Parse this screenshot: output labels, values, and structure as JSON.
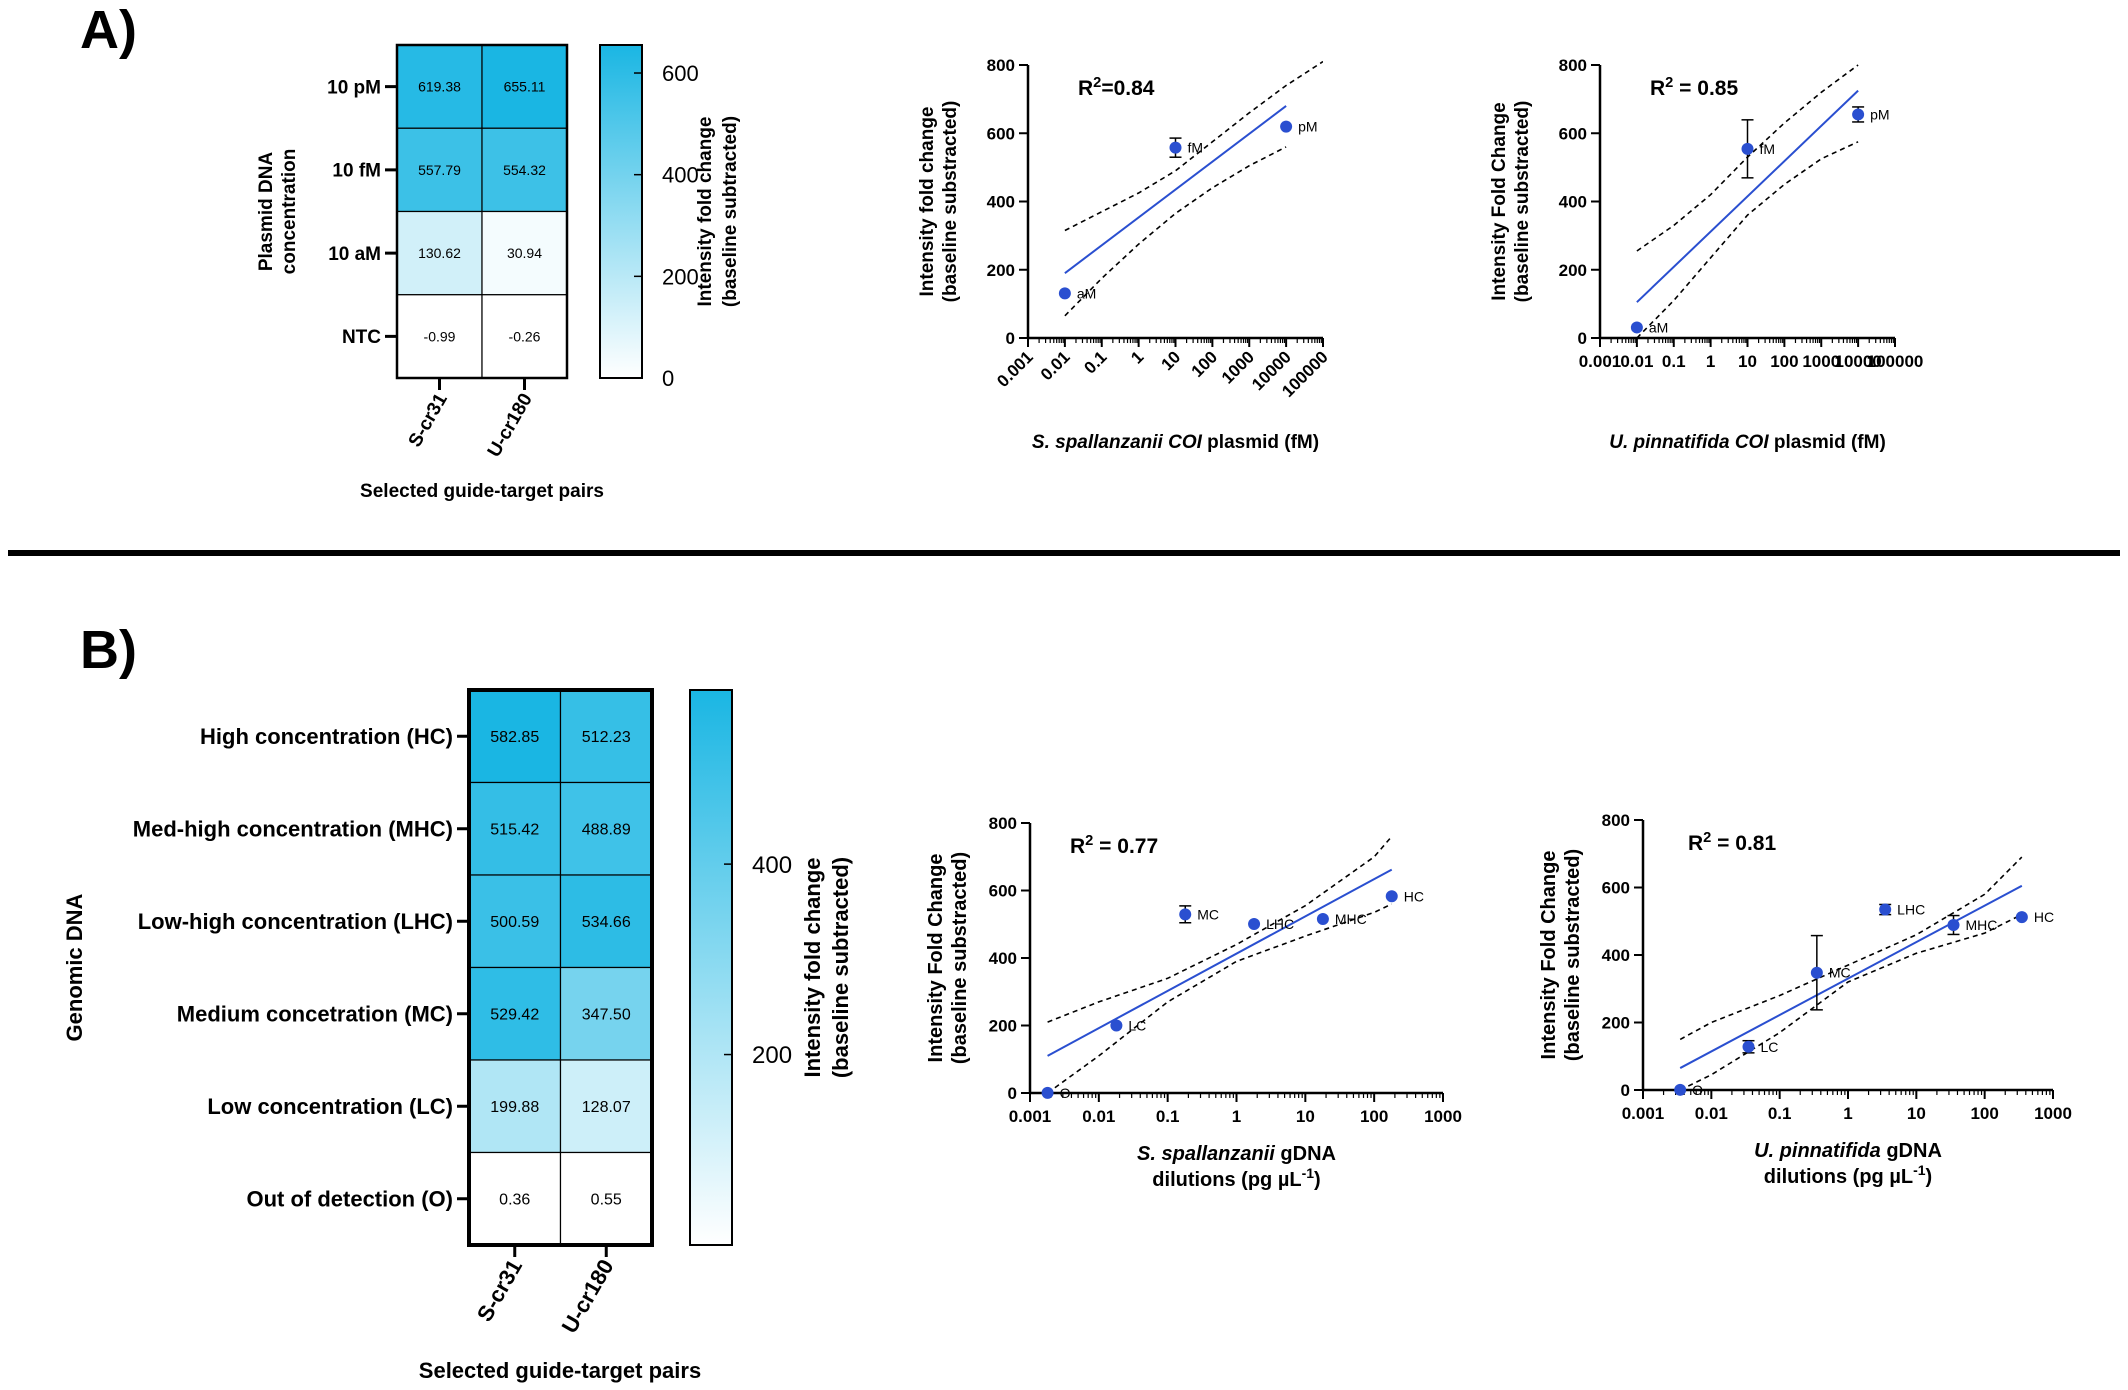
{
  "panel_labels": {
    "a": "A)",
    "b": "B)"
  },
  "colors": {
    "low": "#ffffff",
    "high": "#1ab6e3",
    "point": "#2a4fd0",
    "fit": "#2a4fd0",
    "text": "#000000"
  },
  "chart_data": [
    {
      "id": "heatA",
      "type": "heatmap",
      "ylabel": [
        "Plasmid DNA",
        "concentration"
      ],
      "xlabel": "Selected guide-target pairs",
      "rows": [
        "10 pM",
        "10 fM",
        "10 aM",
        "NTC"
      ],
      "cols": [
        "S-cr31",
        "U-cr180"
      ],
      "cells": [
        [
          "619.38",
          "655.11"
        ],
        [
          "557.79",
          "554.32"
        ],
        [
          "130.62",
          "30.94"
        ],
        [
          "-0.99",
          "-0.26"
        ]
      ],
      "values": [
        [
          619.38,
          655.11
        ],
        [
          557.79,
          554.32
        ],
        [
          130.62,
          30.94
        ],
        [
          -0.99,
          -0.26
        ]
      ],
      "colorbar": {
        "min": 0,
        "max": 655.11,
        "ticks": [
          "600",
          "400",
          "200",
          "0"
        ],
        "tick_values": [
          600,
          400,
          200,
          0
        ],
        "label": [
          "Intensity fold change",
          "(baseline subtracted)"
        ]
      }
    },
    {
      "id": "scatA1",
      "type": "scatter",
      "r2": {
        "prefix": "R",
        "sup": "2",
        "value": "=0.84"
      },
      "ylabel": [
        "Intensity fold change",
        "(baseline substracted)"
      ],
      "xlabel": [
        {
          "italic": "S. spallanzanii COI",
          "normal": " plasmid (fM)"
        }
      ],
      "xscale": "log",
      "xlim": [
        0.001,
        100000
      ],
      "ylim": [
        0,
        800
      ],
      "xticks": [
        "0.001",
        "0.01",
        "0.1",
        "1",
        "10",
        "100",
        "1000",
        "10000",
        "100000"
      ],
      "xtick_values": [
        0.001,
        0.01,
        0.1,
        1,
        10,
        100,
        1000,
        10000,
        100000
      ],
      "yticks": [
        "0",
        "200",
        "400",
        "600",
        "800"
      ],
      "ytick_values": [
        0,
        200,
        400,
        600,
        800
      ],
      "points": [
        {
          "x": 0.01,
          "y": 130.62,
          "label": "aM",
          "err": 0
        },
        {
          "x": 10,
          "y": 557.79,
          "label": "fM",
          "err": 28
        },
        {
          "x": 10000,
          "y": 619.38,
          "label": "pM",
          "err": 0
        }
      ],
      "fit": {
        "x": [
          0.01,
          10000
        ],
        "y": [
          190,
          680
        ]
      },
      "ci_upper": {
        "x": [
          0.01,
          0.1,
          1,
          10,
          100,
          1000,
          10000,
          100000
        ],
        "y": [
          315,
          370,
          425,
          490,
          575,
          660,
          740,
          810
        ]
      },
      "ci_lower": {
        "x": [
          0.01,
          0.1,
          1,
          10,
          100,
          1000,
          10000
        ],
        "y": [
          65,
          175,
          275,
          365,
          440,
          505,
          560
        ]
      }
    },
    {
      "id": "scatA2",
      "type": "scatter",
      "r2": {
        "prefix": "R",
        "sup": "2",
        "value": " = 0.85"
      },
      "ylabel": [
        "Intensity Fold Change",
        "(baseline substracted)"
      ],
      "xlabel": [
        {
          "italic": "U. pinnatifida COI",
          "normal": " plasmid (fM)"
        }
      ],
      "xscale": "log",
      "xlim": [
        0.001,
        100000
      ],
      "ylim": [
        0,
        800
      ],
      "xticks": [
        "0.001",
        "0.01",
        "0.1",
        "1",
        "10",
        "100",
        "1000",
        "10000",
        "100000"
      ],
      "xtick_values": [
        0.001,
        0.01,
        0.1,
        1,
        10,
        100,
        1000,
        10000,
        100000
      ],
      "yticks": [
        "0",
        "200",
        "400",
        "600",
        "800"
      ],
      "ytick_values": [
        0,
        200,
        400,
        600,
        800
      ],
      "points": [
        {
          "x": 0.01,
          "y": 30.94,
          "label": "aM",
          "err": 0
        },
        {
          "x": 10,
          "y": 554.32,
          "label": "fM",
          "err": 85
        },
        {
          "x": 10000,
          "y": 655.11,
          "label": "pM",
          "err": 22
        }
      ],
      "fit": {
        "x": [
          0.01,
          10000
        ],
        "y": [
          105,
          725
        ]
      },
      "ci_upper": {
        "x": [
          0.01,
          0.1,
          1,
          10,
          100,
          1000,
          10000
        ],
        "y": [
          255,
          330,
          420,
          530,
          630,
          720,
          800
        ]
      },
      "ci_lower": {
        "x": [
          0.01,
          0.1,
          1,
          10,
          100,
          1000,
          10000
        ],
        "y": [
          0,
          110,
          235,
          360,
          450,
          525,
          575
        ]
      }
    },
    {
      "id": "heatB",
      "type": "heatmap",
      "ylabel": [
        "Genomic DNA"
      ],
      "xlabel": "Selected guide-target pairs",
      "rows": [
        "High concentration (HC)",
        "Med-high concentration (MHC)",
        "Low-high concentration (LHC)",
        "Medium concetration (MC)",
        "Low concentration (LC)",
        "Out of detection (O)"
      ],
      "cols": [
        "S-cr31",
        "U-cr180"
      ],
      "cells": [
        [
          "582.85",
          "512.23"
        ],
        [
          "515.42",
          "488.89"
        ],
        [
          "500.59",
          "534.66"
        ],
        [
          "529.42",
          "347.50"
        ],
        [
          "199.88",
          "128.07"
        ],
        [
          "0.36",
          "0.55"
        ]
      ],
      "values": [
        [
          582.85,
          512.23
        ],
        [
          515.42,
          488.89
        ],
        [
          500.59,
          534.66
        ],
        [
          529.42,
          347.5
        ],
        [
          199.88,
          128.07
        ],
        [
          0.36,
          0.55
        ]
      ],
      "colorbar": {
        "min": 0,
        "max": 582.85,
        "ticks": [
          "400",
          "200"
        ],
        "tick_values": [
          400,
          200
        ],
        "label": [
          "Intensity fold change",
          "(baseline subtracted)"
        ]
      }
    },
    {
      "id": "scatB1",
      "type": "scatter",
      "r2": {
        "prefix": "R",
        "sup": "2",
        "value": " = 0.77"
      },
      "ylabel": [
        "Intensity Fold Change",
        "(baseline substracted)"
      ],
      "xlabel": [
        {
          "italic": "S. spallanzanii",
          "normal": " gDNA"
        },
        {
          "italic": "",
          "normal": "dilutions (pg µL",
          "sup": "-1",
          "tail": ")"
        }
      ],
      "xscale": "log",
      "xlim": [
        0.001,
        1000
      ],
      "ylim": [
        0,
        800
      ],
      "xticks": [
        "0.001",
        "0.01",
        "0.1",
        "1",
        "10",
        "100",
        "1000"
      ],
      "xtick_values": [
        0.001,
        0.01,
        0.1,
        1,
        10,
        100,
        1000
      ],
      "yticks": [
        "0",
        "200",
        "400",
        "600",
        "800"
      ],
      "ytick_values": [
        0,
        200,
        400,
        600,
        800
      ],
      "points": [
        {
          "x": 0.0018,
          "y": 0.36,
          "label": "O",
          "err": 0
        },
        {
          "x": 0.018,
          "y": 199.88,
          "label": "LC",
          "err": 0
        },
        {
          "x": 0.18,
          "y": 529.42,
          "label": "MC",
          "err": 25
        },
        {
          "x": 1.8,
          "y": 500.59,
          "label": "LHC",
          "err": 0
        },
        {
          "x": 18,
          "y": 515.42,
          "label": "MHC",
          "err": 0
        },
        {
          "x": 180,
          "y": 582.85,
          "label": "HC",
          "err": 0
        }
      ],
      "fit": {
        "x": [
          0.0018,
          180
        ],
        "y": [
          110,
          662
        ]
      },
      "ci_upper": {
        "x": [
          0.0018,
          0.01,
          0.1,
          1,
          10,
          100,
          180
        ],
        "y": [
          210,
          270,
          340,
          440,
          555,
          700,
          760
        ]
      },
      "ci_lower": {
        "x": [
          0.0018,
          0.01,
          0.1,
          1,
          10,
          100,
          180
        ],
        "y": [
          0,
          110,
          270,
          390,
          465,
          535,
          560
        ]
      }
    },
    {
      "id": "scatB2",
      "type": "scatter",
      "r2": {
        "prefix": "R",
        "sup": "2",
        "value": " = 0.81"
      },
      "ylabel": [
        "Intensity Fold Change",
        "(baseline substracted)"
      ],
      "xlabel": [
        {
          "italic": "U. pinnatifida",
          "normal": " gDNA"
        },
        {
          "italic": "",
          "normal": "dilutions (pg µL",
          "sup": "-1",
          "tail": ")"
        }
      ],
      "xscale": "log",
      "xlim": [
        0.001,
        1000
      ],
      "ylim": [
        0,
        800
      ],
      "xticks": [
        "0.001",
        "0.01",
        "0.1",
        "1",
        "10",
        "100",
        "1000"
      ],
      "xtick_values": [
        0.001,
        0.01,
        0.1,
        1,
        10,
        100,
        1000
      ],
      "yticks": [
        "0",
        "200",
        "400",
        "600",
        "800"
      ],
      "ytick_values": [
        0,
        200,
        400,
        600,
        800
      ],
      "points": [
        {
          "x": 0.0035,
          "y": 0.55,
          "label": "O",
          "err": 0
        },
        {
          "x": 0.035,
          "y": 128.07,
          "label": "LC",
          "err": 18
        },
        {
          "x": 0.35,
          "y": 347.5,
          "label": "MC",
          "err": 110
        },
        {
          "x": 3.5,
          "y": 534.66,
          "label": "LHC",
          "err": 15
        },
        {
          "x": 35,
          "y": 488.89,
          "label": "MHC",
          "err": 28
        },
        {
          "x": 350,
          "y": 512.23,
          "label": "HC",
          "err": 0
        }
      ],
      "fit": {
        "x": [
          0.0035,
          350
        ],
        "y": [
          65,
          605
        ]
      },
      "ci_upper": {
        "x": [
          0.0035,
          0.01,
          0.1,
          1,
          10,
          100,
          350
        ],
        "y": [
          150,
          200,
          280,
          370,
          460,
          580,
          690
        ]
      },
      "ci_lower": {
        "x": [
          0.0035,
          0.01,
          0.1,
          1,
          10,
          100,
          350
        ],
        "y": [
          0,
          45,
          170,
          320,
          405,
          465,
          520
        ]
      }
    }
  ]
}
